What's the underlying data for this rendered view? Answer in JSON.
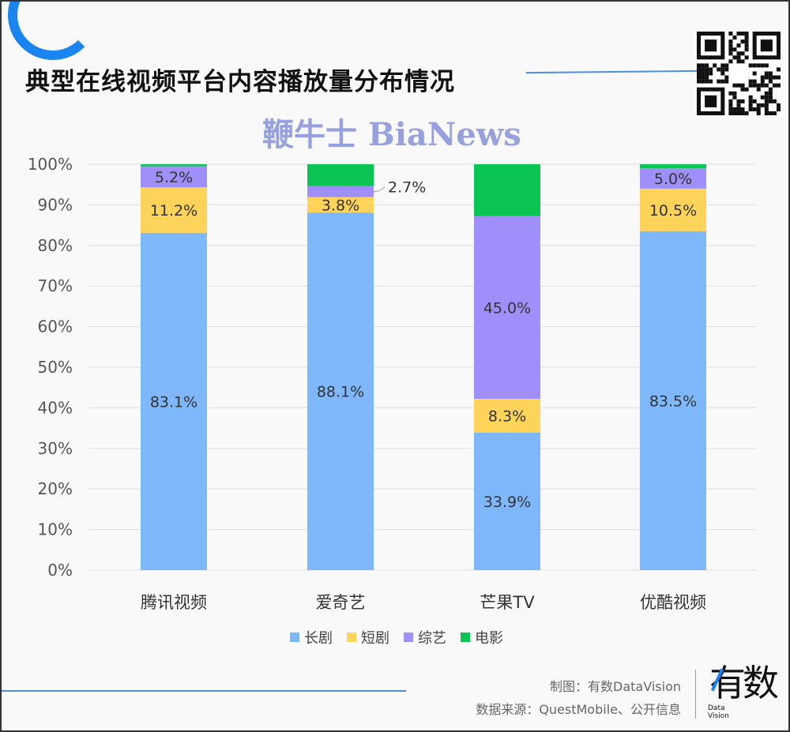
{
  "header": {
    "title": "典型在线视频平台内容播放量分布情况"
  },
  "chart_data": {
    "type": "bar",
    "stacked": true,
    "title": "典型在线视频平台内容播放量分布情况",
    "categories": [
      "腾讯视频",
      "爱奇艺",
      "芒果TV",
      "优酷视频"
    ],
    "series": [
      {
        "name": "长剧",
        "color": "#7fb8fa",
        "values": [
          83.1,
          88.1,
          33.9,
          83.5
        ],
        "labels": [
          "83.1%",
          "88.1%",
          "33.9%",
          "83.5%"
        ]
      },
      {
        "name": "短剧",
        "color": "#fdd35a",
        "values": [
          11.2,
          3.8,
          8.3,
          10.5
        ],
        "labels": [
          "11.2%",
          "3.8%",
          "8.3%",
          "10.5%"
        ]
      },
      {
        "name": "综艺",
        "color": "#9f8ffa",
        "values": [
          5.2,
          2.7,
          45.0,
          5.0
        ],
        "labels": [
          "5.2%",
          "2.7%",
          "45.0%",
          "5.0%"
        ]
      },
      {
        "name": "电影",
        "color": "#0ac553",
        "values": [
          0.5,
          5.4,
          12.8,
          1.0
        ],
        "labels": [
          "",
          "",
          "",
          ""
        ]
      }
    ],
    "yticks": [
      "0%",
      "10%",
      "20%",
      "30%",
      "40%",
      "50%",
      "60%",
      "70%",
      "80%",
      "90%",
      "100%"
    ],
    "ylim": [
      0,
      100
    ],
    "grid": true,
    "legend": "bottom"
  },
  "watermark": "鞭牛士 BiaNews",
  "footer": {
    "credit": "制图：有数DataVision",
    "source": "数据来源：QuestMobile、公开信息",
    "logo": "有数",
    "logo_sub1": "Data",
    "logo_sub2": "Vision"
  }
}
